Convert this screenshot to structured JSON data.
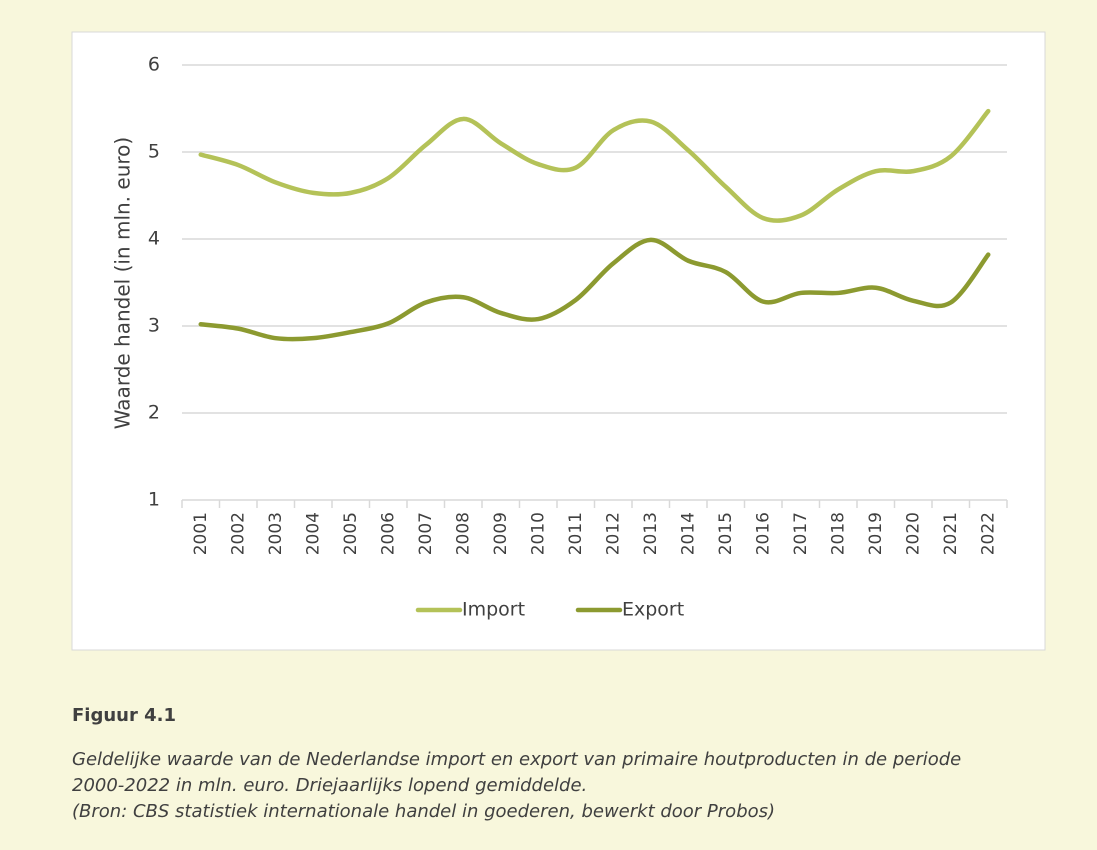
{
  "chart_data": {
    "type": "line",
    "y_label": "Waarde handel (in mln. euro)",
    "categories": [
      "2001",
      "2002",
      "2003",
      "2004",
      "2005",
      "2006",
      "2007",
      "2008",
      "2009",
      "2010",
      "2011",
      "2012",
      "2013",
      "2014",
      "2015",
      "2016",
      "2017",
      "2018",
      "2019",
      "2020",
      "2021",
      "2022"
    ],
    "series": [
      {
        "name": "Import",
        "color": "#b4c258",
        "values": [
          4.97,
          4.85,
          4.65,
          4.53,
          4.53,
          4.7,
          5.08,
          5.38,
          5.1,
          4.86,
          4.82,
          5.25,
          5.35,
          5.02,
          4.6,
          4.24,
          4.27,
          4.57,
          4.78,
          4.78,
          4.95,
          5.47
        ]
      },
      {
        "name": "Export",
        "color": "#8c9a30",
        "values": [
          3.02,
          2.97,
          2.86,
          2.86,
          2.93,
          3.03,
          3.27,
          3.33,
          3.15,
          3.08,
          3.3,
          3.72,
          3.99,
          3.75,
          3.62,
          3.28,
          3.38,
          3.38,
          3.44,
          3.29,
          3.27,
          3.82
        ]
      }
    ],
    "ylim": [
      1,
      6
    ],
    "yticks": [
      1,
      2,
      3,
      4,
      5,
      6
    ],
    "grid": true,
    "legend": "bottom",
    "smooth": true
  },
  "figure": {
    "label": "Figuur 4.1",
    "description": [
      "Geldelijke waarde van de Nederlandse import en export van primaire houtproducten in de periode",
      "2000-2022 in mln. euro. Driejaarlijks lopend gemiddelde.",
      "(Bron: CBS statistiek internationale handel in goederen, bewerkt door Probos)"
    ]
  }
}
